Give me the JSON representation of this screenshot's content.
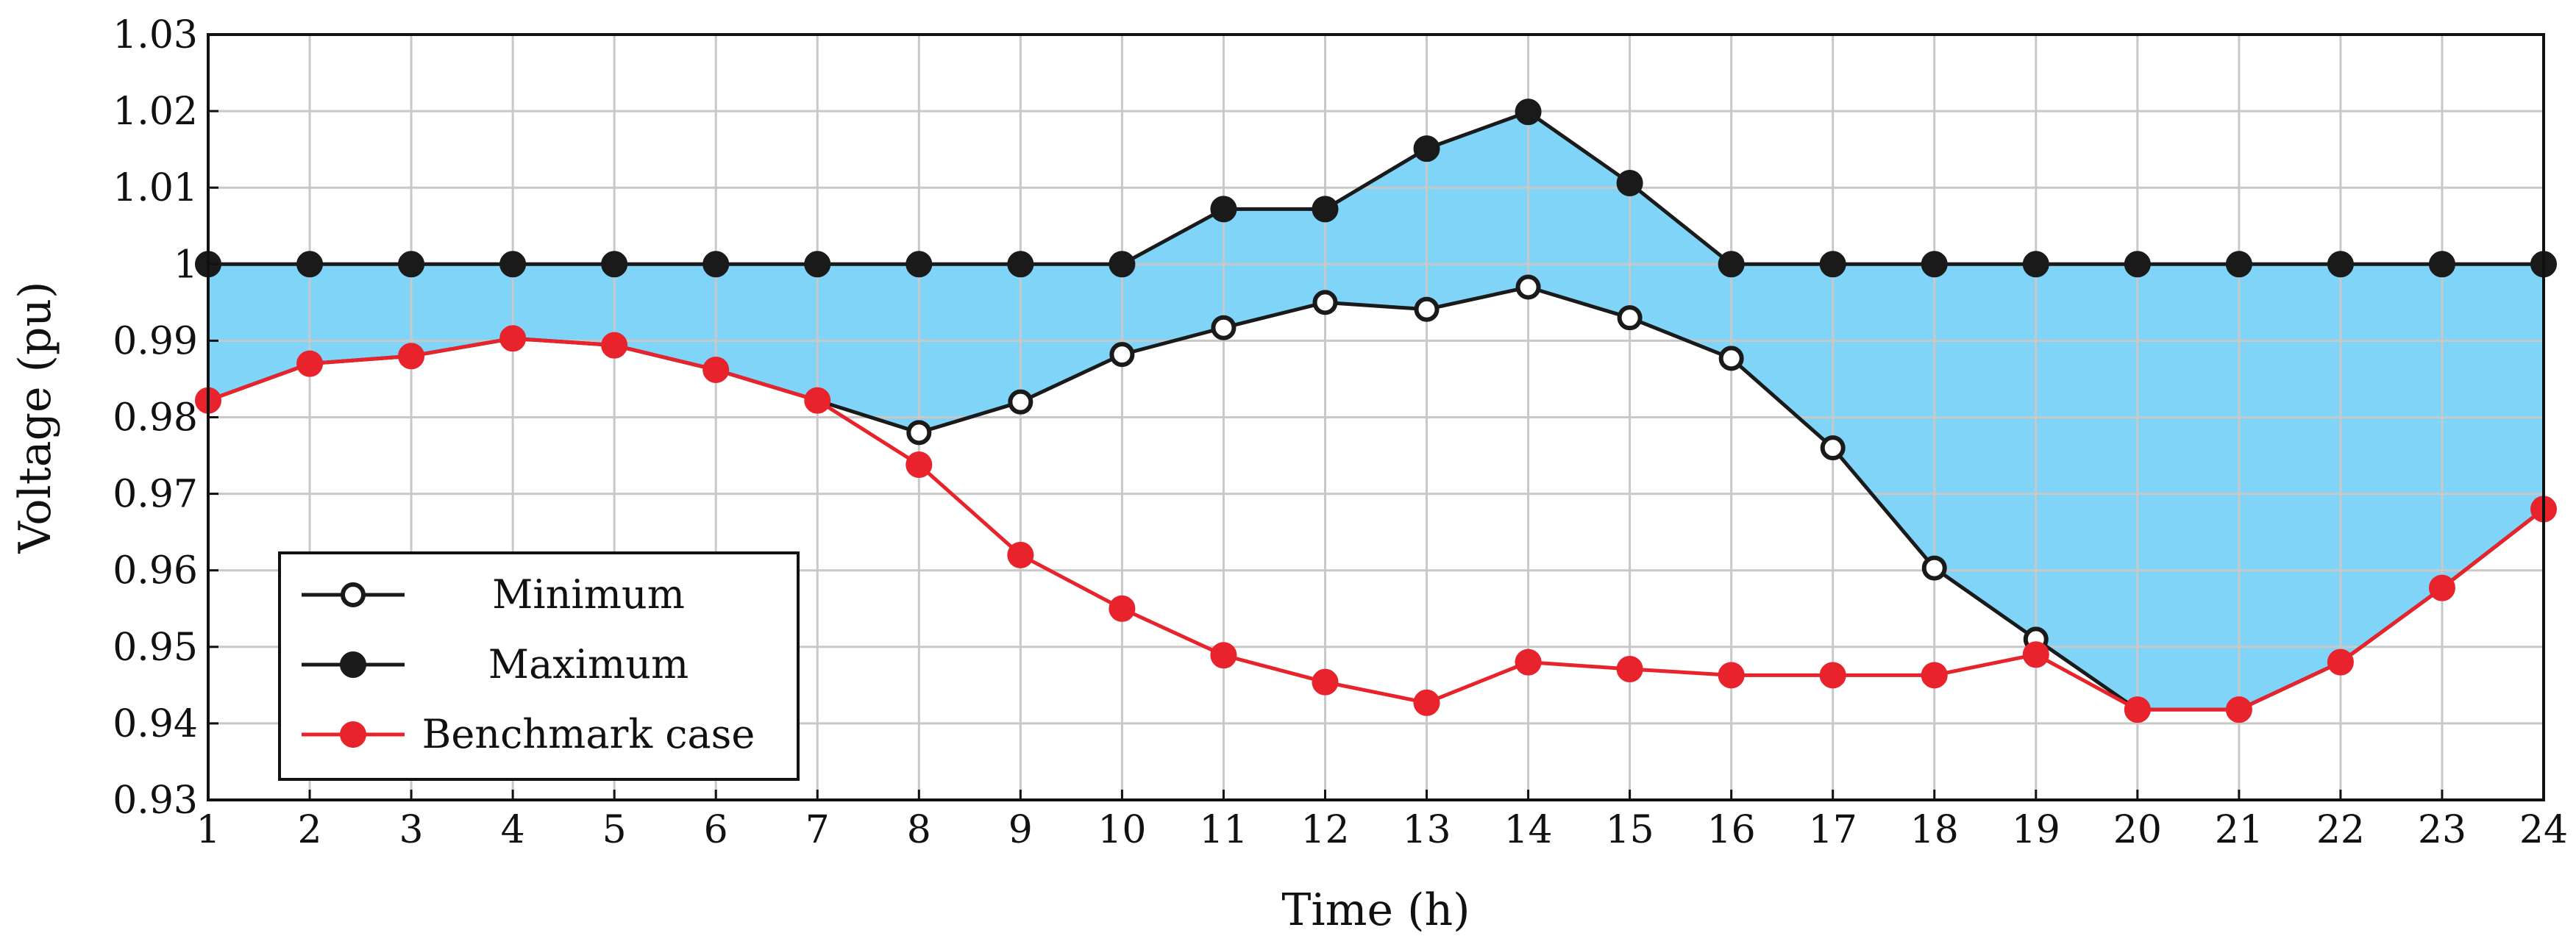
{
  "chart_data": {
    "type": "line",
    "xlabel": "Time (h)",
    "ylabel": "Voltage (pu)",
    "x": [
      1,
      2,
      3,
      4,
      5,
      6,
      7,
      8,
      9,
      10,
      11,
      12,
      13,
      14,
      15,
      16,
      17,
      18,
      19,
      20,
      21,
      22,
      23,
      24
    ],
    "xlim": [
      1,
      24
    ],
    "ylim": [
      0.93,
      1.03
    ],
    "x_ticks": [
      "1",
      "2",
      "3",
      "4",
      "5",
      "6",
      "7",
      "8",
      "9",
      "10",
      "11",
      "12",
      "13",
      "14",
      "15",
      "16",
      "17",
      "18",
      "19",
      "20",
      "21",
      "22",
      "23",
      "24"
    ],
    "y_ticks": [
      {
        "value": 0.93,
        "label": "0.93"
      },
      {
        "value": 0.94,
        "label": "0.94"
      },
      {
        "value": 0.95,
        "label": "0.95"
      },
      {
        "value": 0.96,
        "label": "0.96"
      },
      {
        "value": 0.97,
        "label": "0.97"
      },
      {
        "value": 0.98,
        "label": "0.98"
      },
      {
        "value": 0.99,
        "label": "0.99"
      },
      {
        "value": 1.0,
        "label": "1"
      },
      {
        "value": 1.01,
        "label": "1.01"
      },
      {
        "value": 1.02,
        "label": "1.02"
      },
      {
        "value": 1.03,
        "label": "1.03"
      }
    ],
    "grid": true,
    "fill_between": {
      "lower": "Minimum",
      "upper": "Maximum",
      "color": "#7fd4f7"
    },
    "legend_position": "bottom-left",
    "series": [
      {
        "name": "Minimum",
        "color": "#1a1a1a",
        "marker": "open-circle",
        "values": [
          0.9822,
          0.987,
          0.988,
          0.9903,
          0.9894,
          0.9862,
          0.9822,
          0.978,
          0.982,
          0.9882,
          0.9917,
          0.995,
          0.9941,
          0.997,
          0.993,
          0.9877,
          0.976,
          0.9603,
          0.951,
          0.9418,
          0.9418,
          0.948,
          0.9577,
          0.968
        ]
      },
      {
        "name": "Maximum",
        "color": "#1a1a1a",
        "marker": "filled-circle",
        "values": [
          1.0,
          1.0,
          1.0,
          1.0,
          1.0,
          1.0,
          1.0,
          1.0,
          1.0,
          1.0,
          1.0072,
          1.0072,
          1.0151,
          1.0199,
          1.0106,
          1.0,
          1.0,
          1.0,
          1.0,
          1.0,
          1.0,
          1.0,
          1.0,
          1.0
        ]
      },
      {
        "name": "Benchmark case",
        "color": "#e8232b",
        "marker": "filled-circle",
        "values": [
          0.9822,
          0.987,
          0.988,
          0.9903,
          0.9894,
          0.9862,
          0.9822,
          0.9738,
          0.962,
          0.955,
          0.9489,
          0.9454,
          0.9427,
          0.948,
          0.9471,
          0.9463,
          0.9463,
          0.9463,
          0.949,
          0.9418,
          0.9418,
          0.948,
          0.9577,
          0.968
        ]
      }
    ]
  }
}
